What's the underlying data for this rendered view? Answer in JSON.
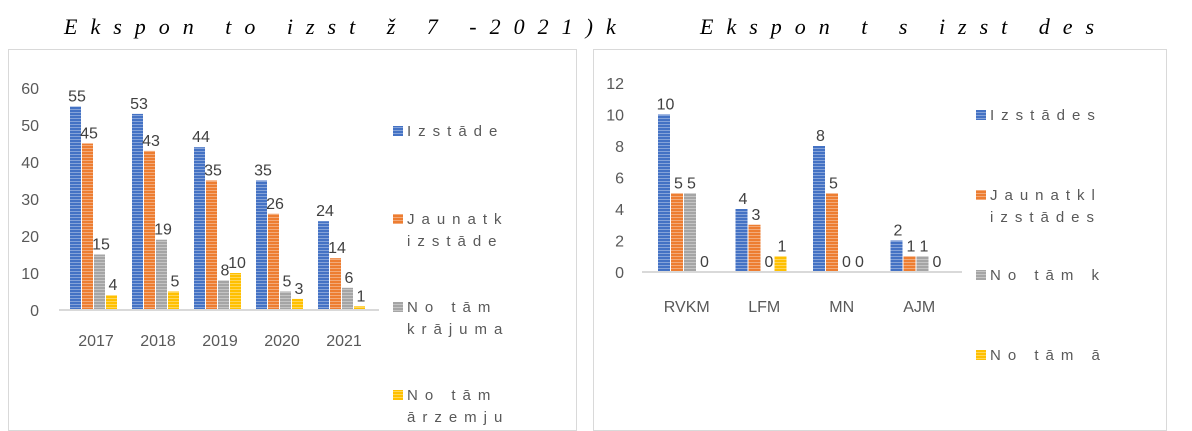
{
  "titles": {
    "left": "Ekspon   to   izst   ž 7 -2021)k",
    "right": "Ekspon   t   s   izst   des"
  },
  "colors": {
    "blue": "#4472c4",
    "orange": "#ed7d31",
    "gray": "#a5a5a5",
    "yellow": "#ffc000"
  },
  "chart_data": [
    {
      "type": "bar",
      "categories": [
        "2017",
        "2018",
        "2019",
        "2020",
        "2021"
      ],
      "series": [
        {
          "name": "Izstāde",
          "values": [
            55,
            53,
            44,
            35,
            24
          ]
        },
        {
          "name": "Jaunatk izstāde",
          "values": [
            45,
            43,
            35,
            26,
            14
          ]
        },
        {
          "name": "No tām krājuma",
          "values": [
            15,
            19,
            8,
            5,
            6
          ]
        },
        {
          "name": "No tām ārzemju",
          "values": [
            4,
            5,
            10,
            3,
            1
          ]
        }
      ],
      "legend_lines": [
        [
          "Izstāde"
        ],
        [
          "Jaunatk",
          "izstāde"
        ],
        [
          "No tām",
          "krājuma"
        ],
        [
          "No tām",
          "ārzemju"
        ]
      ],
      "ylim": [
        0,
        60
      ],
      "yticks": [
        0,
        10,
        20,
        30,
        40,
        50,
        60
      ],
      "legend": "right"
    },
    {
      "type": "bar",
      "categories": [
        "RVKM",
        "LFM",
        "MN",
        "AJM"
      ],
      "series": [
        {
          "name": "Izstādes",
          "values": [
            10,
            4,
            8,
            2
          ]
        },
        {
          "name": "Jaunatkl izstādes",
          "values": [
            5,
            3,
            5,
            1
          ]
        },
        {
          "name": "No tām k",
          "values": [
            5,
            0,
            0,
            1
          ]
        },
        {
          "name": "No tām ā",
          "values": [
            0,
            1,
            0,
            0
          ]
        }
      ],
      "legend_lines": [
        [
          "Izstādes"
        ],
        [
          "Jaunatkl",
          "izstādes"
        ],
        [
          "No tām k"
        ],
        [
          "No tām ā"
        ]
      ],
      "ylim": [
        0,
        12
      ],
      "yticks": [
        0,
        2,
        4,
        6,
        8,
        10,
        12
      ],
      "legend": "right"
    }
  ]
}
